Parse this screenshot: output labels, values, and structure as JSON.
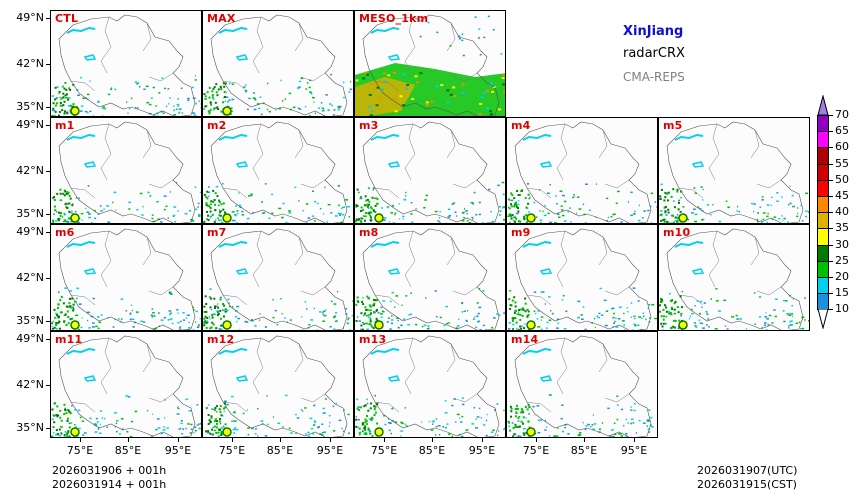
{
  "header": {
    "region": "XinJiang",
    "variable": "radarCRX",
    "model": "CMA-REPS"
  },
  "panels": [
    {
      "label": "CTL",
      "row": 0,
      "col": 0
    },
    {
      "label": "MAX",
      "row": 0,
      "col": 1
    },
    {
      "label": "MESO_1km",
      "row": 0,
      "col": 2
    },
    {
      "label": "m1",
      "row": 1,
      "col": 0
    },
    {
      "label": "m2",
      "row": 1,
      "col": 1
    },
    {
      "label": "m3",
      "row": 1,
      "col": 2
    },
    {
      "label": "m4",
      "row": 1,
      "col": 3
    },
    {
      "label": "m5",
      "row": 1,
      "col": 4
    },
    {
      "label": "m6",
      "row": 2,
      "col": 0
    },
    {
      "label": "m7",
      "row": 2,
      "col": 1
    },
    {
      "label": "m8",
      "row": 2,
      "col": 2
    },
    {
      "label": "m9",
      "row": 2,
      "col": 3
    },
    {
      "label": "m10",
      "row": 2,
      "col": 4
    },
    {
      "label": "m11",
      "row": 3,
      "col": 0
    },
    {
      "label": "m12",
      "row": 3,
      "col": 1
    },
    {
      "label": "m13",
      "row": 3,
      "col": 2
    },
    {
      "label": "m14",
      "row": 3,
      "col": 3
    }
  ],
  "lat_labels": [
    "49°N",
    "42°N",
    "35°N"
  ],
  "lon_labels": [
    "75°E",
    "85°E",
    "95°E"
  ],
  "colorbar": {
    "levels": [
      10,
      15,
      20,
      25,
      30,
      35,
      40,
      45,
      50,
      55,
      60,
      65,
      70
    ],
    "labels": [
      "10",
      "15",
      "20",
      "25",
      "30",
      "35",
      "40",
      "45",
      "50",
      "55",
      "60",
      "65",
      "70"
    ],
    "colors": [
      "#1e90e0",
      "#00d0f0",
      "#00c000",
      "#007a00",
      "#ffff00",
      "#e0b000",
      "#ff8800",
      "#ff0000",
      "#d00000",
      "#b00000",
      "#ff00ff",
      "#9000c0",
      "#a080e0"
    ]
  },
  "time": {
    "init_utc": "2026031906  +  001h",
    "init_cst": "2026031914  +  001h",
    "valid_utc": "2026031907(UTC)",
    "valid_cst": "2026031915(CST)"
  }
}
